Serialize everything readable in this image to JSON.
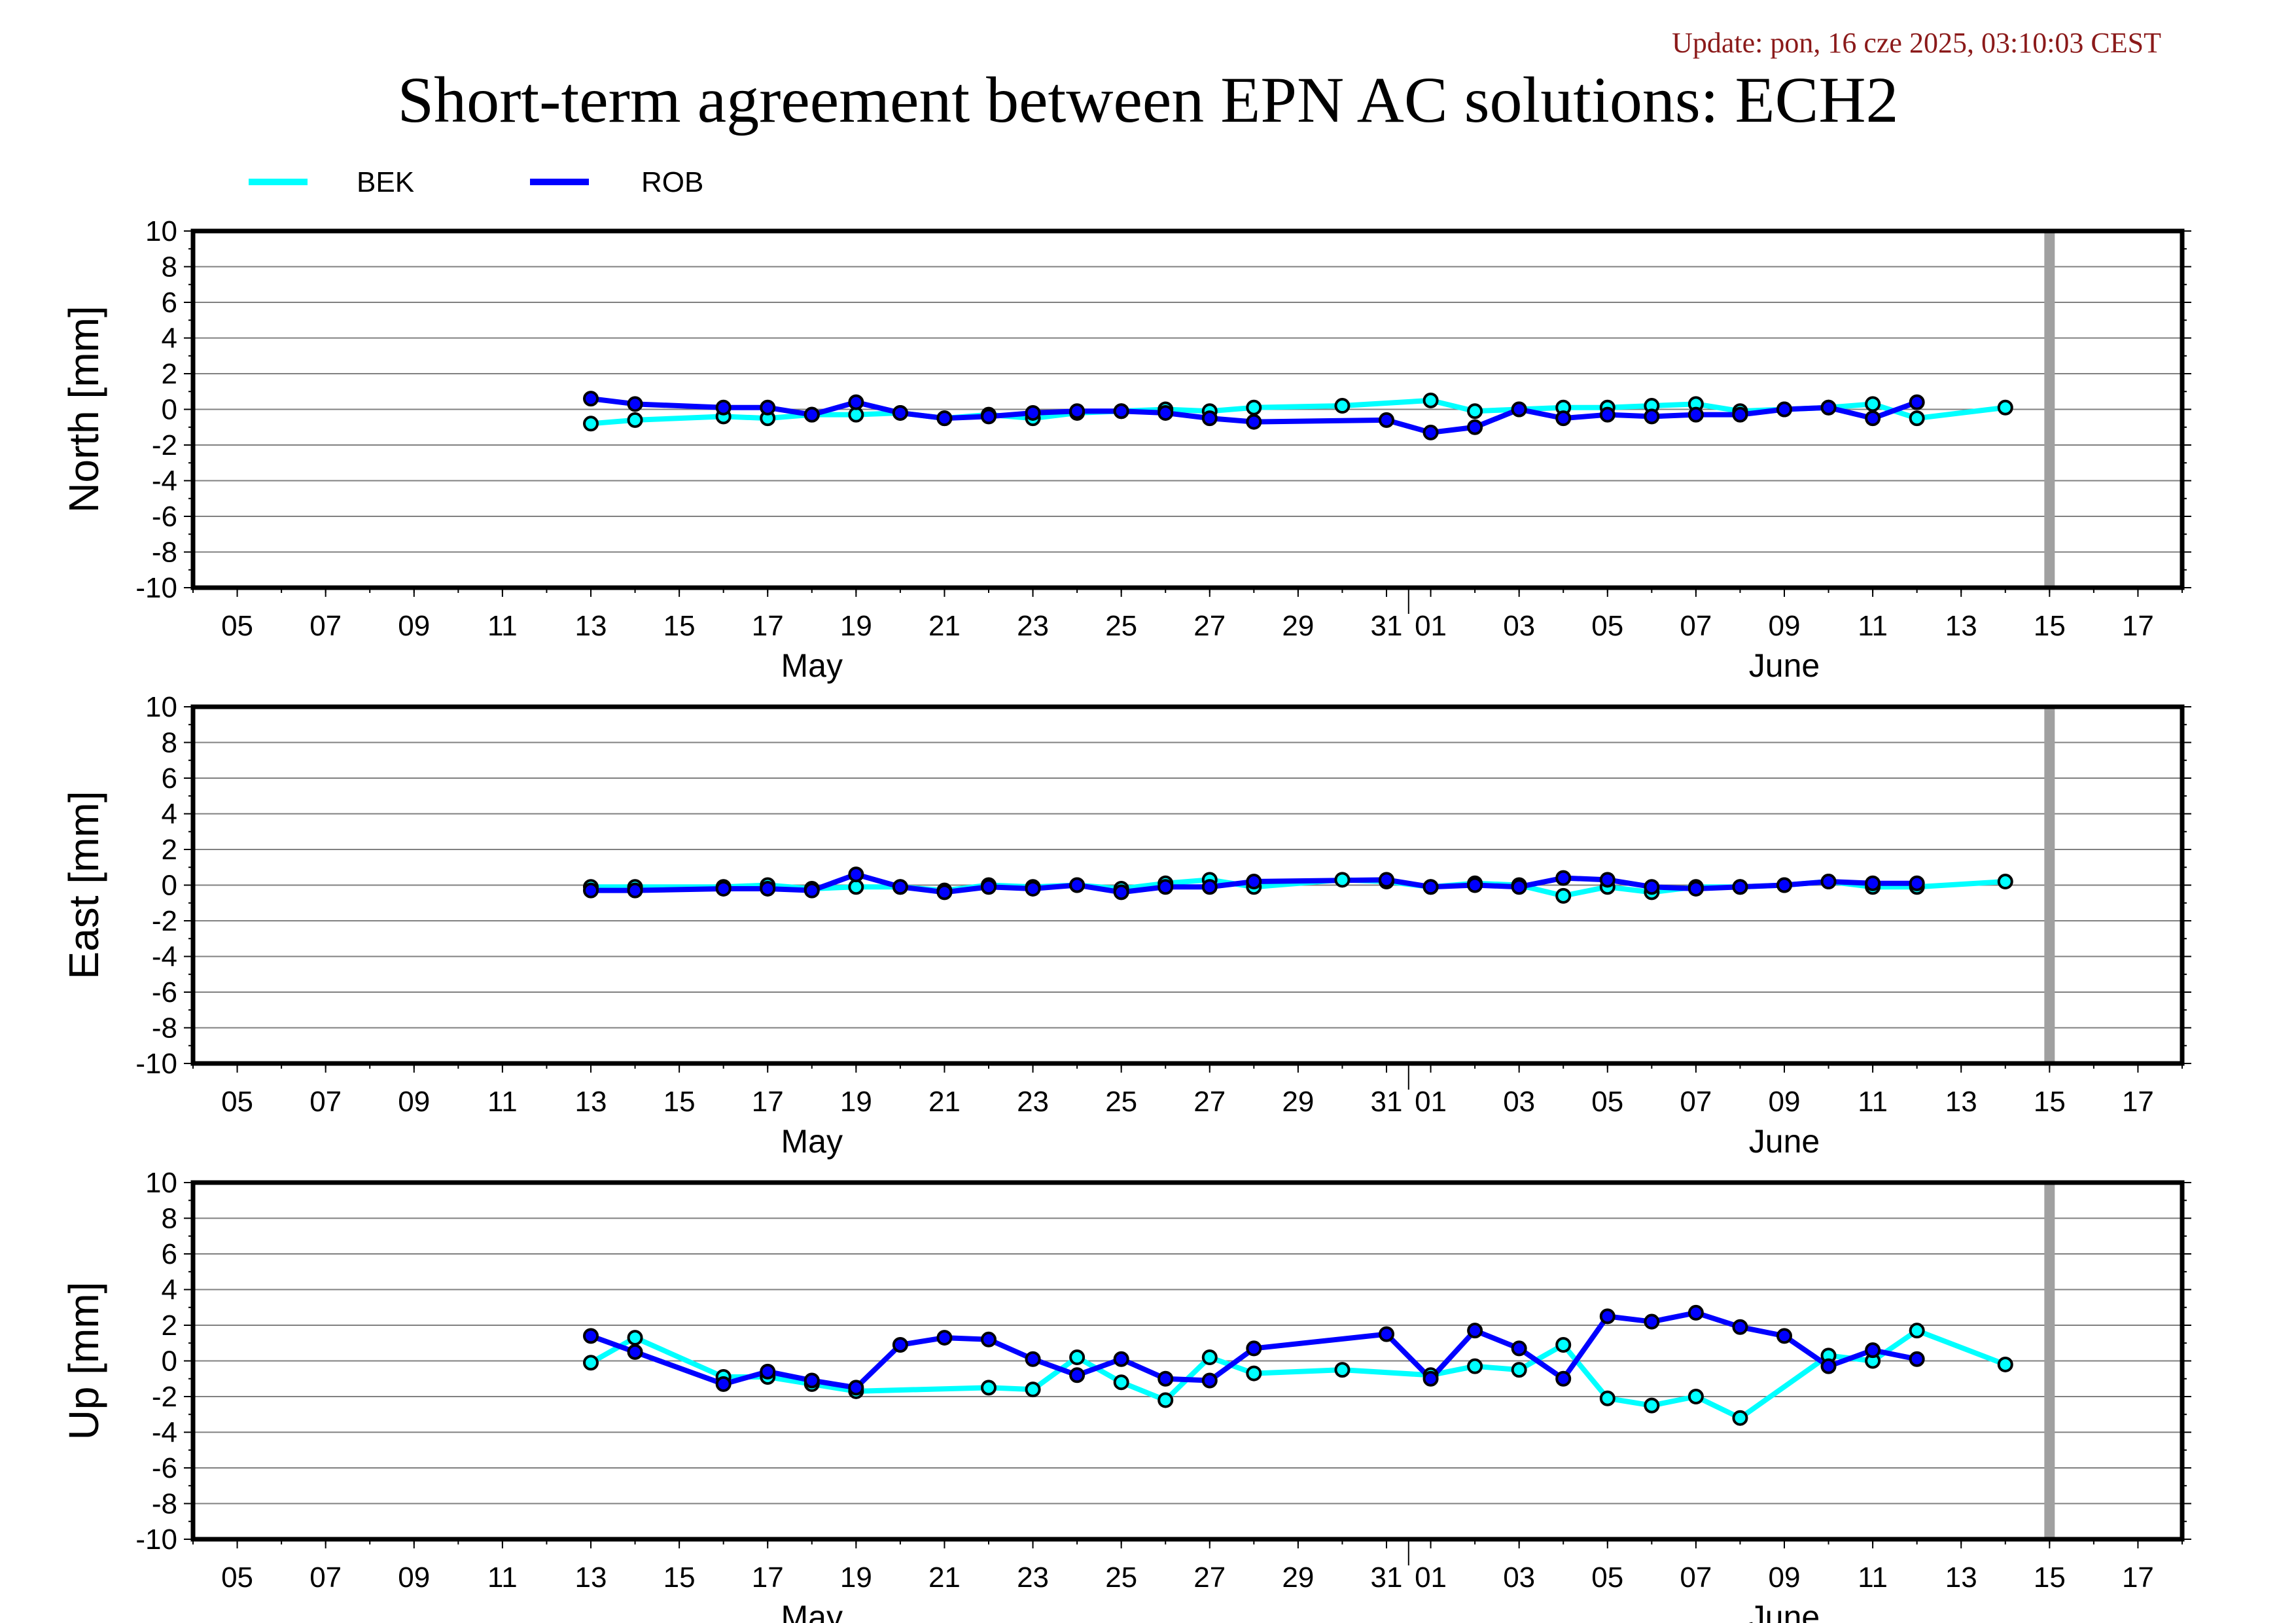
{
  "update_text": "Update: pon, 16 cze 2025, 03:10:03 CEST",
  "title": "Short-term agreement between EPN AC solutions: ECH2",
  "legend": [
    {
      "name": "BEK",
      "color": "#00ffff"
    },
    {
      "name": "ROB",
      "color": "#0000ff"
    }
  ],
  "colors": {
    "frame": "#000000",
    "gridline": "#808080",
    "today_marker": "#a0a0a0",
    "update_text": "#8b1a1a"
  },
  "chart_data": [
    {
      "type": "line",
      "ylabel": "North [mm]",
      "ylim": [
        -10,
        10
      ],
      "yticks": [
        10,
        8,
        6,
        4,
        2,
        0,
        -2,
        -4,
        -6,
        -8,
        -10
      ],
      "xlim": [
        "2025-05-04",
        "2025-06-18"
      ],
      "x_tick_labels": [
        "05",
        "07",
        "09",
        "11",
        "13",
        "15",
        "17",
        "19",
        "21",
        "23",
        "25",
        "27",
        "29",
        "31",
        "01",
        "03",
        "05",
        "07",
        "09",
        "11",
        "13",
        "15",
        "17"
      ],
      "x_tick_dates": [
        "2025-05-05",
        "2025-05-07",
        "2025-05-09",
        "2025-05-11",
        "2025-05-13",
        "2025-05-15",
        "2025-05-17",
        "2025-05-19",
        "2025-05-21",
        "2025-05-23",
        "2025-05-25",
        "2025-05-27",
        "2025-05-29",
        "2025-05-31",
        "2025-06-01",
        "2025-06-03",
        "2025-06-05",
        "2025-06-07",
        "2025-06-09",
        "2025-06-11",
        "2025-06-13",
        "2025-06-15",
        "2025-06-17"
      ],
      "month_labels": [
        {
          "label": "May",
          "date": "2025-05-18"
        },
        {
          "label": "June",
          "date": "2025-06-09"
        }
      ],
      "today": "2025-06-15",
      "series": [
        {
          "name": "BEK",
          "color": "#00ffff",
          "points": [
            [
              "2025-05-13",
              -0.8
            ],
            [
              "2025-05-14",
              -0.6
            ],
            [
              "2025-05-16",
              -0.4
            ],
            [
              "2025-05-17",
              -0.5
            ],
            [
              "2025-05-18",
              -0.3
            ],
            [
              "2025-05-19",
              -0.3
            ],
            [
              "2025-05-20",
              -0.2
            ],
            [
              "2025-05-21",
              -0.5
            ],
            [
              "2025-05-22",
              -0.3
            ],
            [
              "2025-05-23",
              -0.5
            ],
            [
              "2025-05-24",
              -0.2
            ],
            [
              "2025-05-25",
              -0.1
            ],
            [
              "2025-05-26",
              0.0
            ],
            [
              "2025-05-27",
              -0.1
            ],
            [
              "2025-05-28",
              0.1
            ],
            [
              "2025-05-30",
              0.2
            ],
            [
              "2025-06-01",
              0.5
            ],
            [
              "2025-06-02",
              -0.1
            ],
            [
              "2025-06-03",
              0.0
            ],
            [
              "2025-06-04",
              0.1
            ],
            [
              "2025-06-05",
              0.1
            ],
            [
              "2025-06-06",
              0.2
            ],
            [
              "2025-06-07",
              0.3
            ],
            [
              "2025-06-08",
              -0.1
            ],
            [
              "2025-06-09",
              0.0
            ],
            [
              "2025-06-10",
              0.1
            ],
            [
              "2025-06-11",
              0.3
            ],
            [
              "2025-06-12",
              -0.5
            ],
            [
              "2025-06-14",
              0.1
            ]
          ]
        },
        {
          "name": "ROB",
          "color": "#0000ff",
          "points": [
            [
              "2025-05-13",
              0.6
            ],
            [
              "2025-05-14",
              0.3
            ],
            [
              "2025-05-16",
              0.1
            ],
            [
              "2025-05-17",
              0.1
            ],
            [
              "2025-05-18",
              -0.3
            ],
            [
              "2025-05-19",
              0.4
            ],
            [
              "2025-05-20",
              -0.2
            ],
            [
              "2025-05-21",
              -0.5
            ],
            [
              "2025-05-22",
              -0.4
            ],
            [
              "2025-05-23",
              -0.2
            ],
            [
              "2025-05-24",
              -0.1
            ],
            [
              "2025-05-25",
              -0.1
            ],
            [
              "2025-05-26",
              -0.2
            ],
            [
              "2025-05-27",
              -0.5
            ],
            [
              "2025-05-28",
              -0.7
            ],
            [
              "2025-05-31",
              -0.6
            ],
            [
              "2025-06-01",
              -1.3
            ],
            [
              "2025-06-02",
              -1.0
            ],
            [
              "2025-06-03",
              0.0
            ],
            [
              "2025-06-04",
              -0.5
            ],
            [
              "2025-06-05",
              -0.3
            ],
            [
              "2025-06-06",
              -0.4
            ],
            [
              "2025-06-07",
              -0.3
            ],
            [
              "2025-06-08",
              -0.3
            ],
            [
              "2025-06-09",
              0.0
            ],
            [
              "2025-06-10",
              0.1
            ],
            [
              "2025-06-11",
              -0.5
            ],
            [
              "2025-06-12",
              0.4
            ]
          ]
        }
      ]
    },
    {
      "type": "line",
      "ylabel": "East [mm]",
      "ylim": [
        -10,
        10
      ],
      "yticks": [
        10,
        8,
        6,
        4,
        2,
        0,
        -2,
        -4,
        -6,
        -8,
        -10
      ],
      "xlim": [
        "2025-05-04",
        "2025-06-18"
      ],
      "x_tick_labels": [
        "05",
        "07",
        "09",
        "11",
        "13",
        "15",
        "17",
        "19",
        "21",
        "23",
        "25",
        "27",
        "29",
        "31",
        "01",
        "03",
        "05",
        "07",
        "09",
        "11",
        "13",
        "15",
        "17"
      ],
      "x_tick_dates": [
        "2025-05-05",
        "2025-05-07",
        "2025-05-09",
        "2025-05-11",
        "2025-05-13",
        "2025-05-15",
        "2025-05-17",
        "2025-05-19",
        "2025-05-21",
        "2025-05-23",
        "2025-05-25",
        "2025-05-27",
        "2025-05-29",
        "2025-05-31",
        "2025-06-01",
        "2025-06-03",
        "2025-06-05",
        "2025-06-07",
        "2025-06-09",
        "2025-06-11",
        "2025-06-13",
        "2025-06-15",
        "2025-06-17"
      ],
      "month_labels": [
        {
          "label": "May",
          "date": "2025-05-18"
        },
        {
          "label": "June",
          "date": "2025-06-09"
        }
      ],
      "today": "2025-06-15",
      "series": [
        {
          "name": "BEK",
          "color": "#00ffff",
          "points": [
            [
              "2025-05-13",
              -0.1
            ],
            [
              "2025-05-14",
              -0.1
            ],
            [
              "2025-05-16",
              -0.1
            ],
            [
              "2025-05-17",
              0.0
            ],
            [
              "2025-05-18",
              -0.2
            ],
            [
              "2025-05-19",
              -0.1
            ],
            [
              "2025-05-20",
              -0.1
            ],
            [
              "2025-05-21",
              -0.3
            ],
            [
              "2025-05-22",
              0.0
            ],
            [
              "2025-05-23",
              -0.1
            ],
            [
              "2025-05-24",
              0.0
            ],
            [
              "2025-05-25",
              -0.2
            ],
            [
              "2025-05-26",
              0.1
            ],
            [
              "2025-05-27",
              0.3
            ],
            [
              "2025-05-28",
              -0.1
            ],
            [
              "2025-05-30",
              0.3
            ],
            [
              "2025-05-31",
              0.2
            ],
            [
              "2025-06-01",
              -0.1
            ],
            [
              "2025-06-02",
              0.1
            ],
            [
              "2025-06-03",
              0.0
            ],
            [
              "2025-06-04",
              -0.6
            ],
            [
              "2025-06-05",
              -0.1
            ],
            [
              "2025-06-06",
              -0.4
            ],
            [
              "2025-06-07",
              -0.1
            ],
            [
              "2025-06-08",
              -0.1
            ],
            [
              "2025-06-09",
              0.0
            ],
            [
              "2025-06-10",
              0.2
            ],
            [
              "2025-06-11",
              -0.1
            ],
            [
              "2025-06-12",
              -0.1
            ],
            [
              "2025-06-14",
              0.2
            ]
          ]
        },
        {
          "name": "ROB",
          "color": "#0000ff",
          "points": [
            [
              "2025-05-13",
              -0.3
            ],
            [
              "2025-05-14",
              -0.3
            ],
            [
              "2025-05-16",
              -0.2
            ],
            [
              "2025-05-17",
              -0.2
            ],
            [
              "2025-05-18",
              -0.3
            ],
            [
              "2025-05-19",
              0.6
            ],
            [
              "2025-05-20",
              -0.1
            ],
            [
              "2025-05-21",
              -0.4
            ],
            [
              "2025-05-22",
              -0.1
            ],
            [
              "2025-05-23",
              -0.2
            ],
            [
              "2025-05-24",
              0.0
            ],
            [
              "2025-05-25",
              -0.4
            ],
            [
              "2025-05-26",
              -0.1
            ],
            [
              "2025-05-27",
              -0.1
            ],
            [
              "2025-05-28",
              0.2
            ],
            [
              "2025-05-31",
              0.3
            ],
            [
              "2025-06-01",
              -0.1
            ],
            [
              "2025-06-02",
              0.0
            ],
            [
              "2025-06-03",
              -0.1
            ],
            [
              "2025-06-04",
              0.4
            ],
            [
              "2025-06-05",
              0.3
            ],
            [
              "2025-06-06",
              -0.1
            ],
            [
              "2025-06-07",
              -0.2
            ],
            [
              "2025-06-08",
              -0.1
            ],
            [
              "2025-06-09",
              0.0
            ],
            [
              "2025-06-10",
              0.2
            ],
            [
              "2025-06-11",
              0.1
            ],
            [
              "2025-06-12",
              0.1
            ]
          ]
        }
      ]
    },
    {
      "type": "line",
      "ylabel": "Up [mm]",
      "ylim": [
        -10,
        10
      ],
      "yticks": [
        10,
        8,
        6,
        4,
        2,
        0,
        -2,
        -4,
        -6,
        -8,
        -10
      ],
      "xlim": [
        "2025-05-04",
        "2025-06-18"
      ],
      "x_tick_labels": [
        "05",
        "07",
        "09",
        "11",
        "13",
        "15",
        "17",
        "19",
        "21",
        "23",
        "25",
        "27",
        "29",
        "31",
        "01",
        "03",
        "05",
        "07",
        "09",
        "11",
        "13",
        "15",
        "17"
      ],
      "x_tick_dates": [
        "2025-05-05",
        "2025-05-07",
        "2025-05-09",
        "2025-05-11",
        "2025-05-13",
        "2025-05-15",
        "2025-05-17",
        "2025-05-19",
        "2025-05-21",
        "2025-05-23",
        "2025-05-25",
        "2025-05-27",
        "2025-05-29",
        "2025-05-31",
        "2025-06-01",
        "2025-06-03",
        "2025-06-05",
        "2025-06-07",
        "2025-06-09",
        "2025-06-11",
        "2025-06-13",
        "2025-06-15",
        "2025-06-17"
      ],
      "month_labels": [
        {
          "label": "May",
          "date": "2025-05-18"
        },
        {
          "label": "June",
          "date": "2025-06-09"
        }
      ],
      "today": "2025-06-15",
      "series": [
        {
          "name": "BEK",
          "color": "#00ffff",
          "points": [
            [
              "2025-05-13",
              -0.1
            ],
            [
              "2025-05-14",
              1.3
            ],
            [
              "2025-05-16",
              -0.9
            ],
            [
              "2025-05-17",
              -0.9
            ],
            [
              "2025-05-18",
              -1.3
            ],
            [
              "2025-05-19",
              -1.7
            ],
            [
              "2025-05-22",
              -1.5
            ],
            [
              "2025-05-23",
              -1.6
            ],
            [
              "2025-05-24",
              0.2
            ],
            [
              "2025-05-25",
              -1.2
            ],
            [
              "2025-05-26",
              -2.2
            ],
            [
              "2025-05-27",
              0.2
            ],
            [
              "2025-05-28",
              -0.7
            ],
            [
              "2025-05-30",
              -0.5
            ],
            [
              "2025-06-01",
              -0.8
            ],
            [
              "2025-06-02",
              -0.3
            ],
            [
              "2025-06-03",
              -0.5
            ],
            [
              "2025-06-04",
              0.9
            ],
            [
              "2025-06-05",
              -2.1
            ],
            [
              "2025-06-06",
              -2.5
            ],
            [
              "2025-06-07",
              -2.0
            ],
            [
              "2025-06-08",
              -3.2
            ],
            [
              "2025-06-10",
              0.3
            ],
            [
              "2025-06-11",
              0.0
            ],
            [
              "2025-06-12",
              1.7
            ],
            [
              "2025-06-14",
              -0.2
            ]
          ]
        },
        {
          "name": "ROB",
          "color": "#0000ff",
          "points": [
            [
              "2025-05-13",
              1.4
            ],
            [
              "2025-05-14",
              0.5
            ],
            [
              "2025-05-16",
              -1.3
            ],
            [
              "2025-05-17",
              -0.6
            ],
            [
              "2025-05-18",
              -1.1
            ],
            [
              "2025-05-19",
              -1.5
            ],
            [
              "2025-05-20",
              0.9
            ],
            [
              "2025-05-21",
              1.3
            ],
            [
              "2025-05-22",
              1.2
            ],
            [
              "2025-05-23",
              0.1
            ],
            [
              "2025-05-24",
              -0.8
            ],
            [
              "2025-05-25",
              0.1
            ],
            [
              "2025-05-26",
              -1.0
            ],
            [
              "2025-05-27",
              -1.1
            ],
            [
              "2025-05-28",
              0.7
            ],
            [
              "2025-05-31",
              1.5
            ],
            [
              "2025-06-01",
              -1.0
            ],
            [
              "2025-06-02",
              1.7
            ],
            [
              "2025-06-03",
              0.7
            ],
            [
              "2025-06-04",
              -1.0
            ],
            [
              "2025-06-05",
              2.5
            ],
            [
              "2025-06-06",
              2.2
            ],
            [
              "2025-06-07",
              2.7
            ],
            [
              "2025-06-08",
              1.9
            ],
            [
              "2025-06-09",
              1.4
            ],
            [
              "2025-06-10",
              -0.3
            ],
            [
              "2025-06-11",
              0.6
            ],
            [
              "2025-06-12",
              0.1
            ]
          ]
        }
      ]
    }
  ]
}
